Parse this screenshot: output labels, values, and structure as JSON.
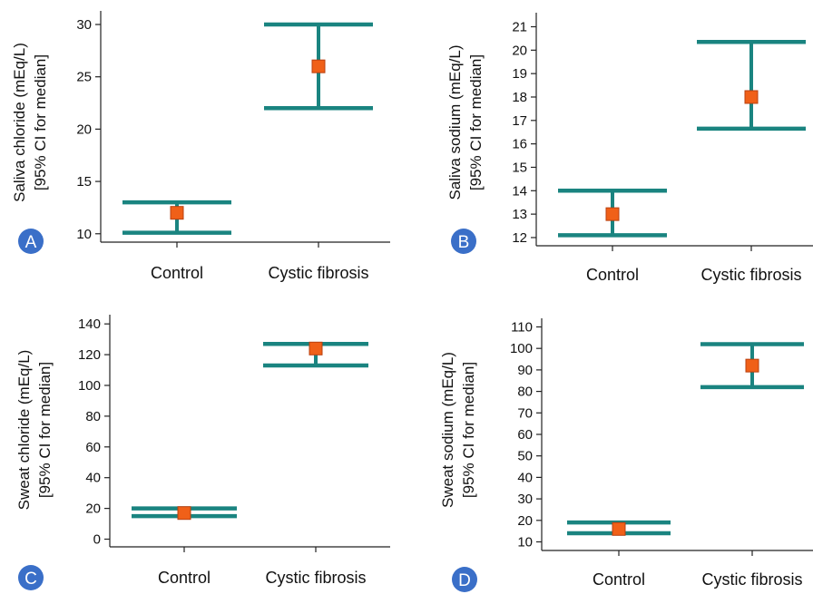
{
  "colors": {
    "ci_bar": "#1a8480",
    "median_marker": "#f06018",
    "median_marker_border": "#b84010",
    "axis": "#222222",
    "badge": "#3a6fc8"
  },
  "chart_data": [
    {
      "type": "errorbar",
      "panel": "A",
      "categories": [
        "Control",
        "Cystic fibrosis"
      ],
      "ylabel_line1": "Saliva chloride (mEq/L)",
      "ylabel_line2": "[95% CI for median]",
      "yticks": [
        10,
        15,
        20,
        25,
        30
      ],
      "ylim": [
        9.2,
        31.3
      ],
      "series": [
        {
          "category": "Control",
          "median": 12,
          "ci_low": 10.1,
          "ci_high": 13
        },
        {
          "category": "Cystic fibrosis",
          "median": 26,
          "ci_low": 22,
          "ci_high": 30
        }
      ]
    },
    {
      "type": "errorbar",
      "panel": "B",
      "categories": [
        "Control",
        "Cystic fibrosis"
      ],
      "ylabel_line1": "Saliva sodium (mEq/L)",
      "ylabel_line2": "[95% CI for median]",
      "yticks": [
        12,
        13,
        14,
        15,
        16,
        17,
        18,
        19,
        20,
        21
      ],
      "ylim": [
        11.65,
        21.6
      ],
      "series": [
        {
          "category": "Control",
          "median": 13,
          "ci_low": 12.1,
          "ci_high": 14
        },
        {
          "category": "Cystic fibrosis",
          "median": 18,
          "ci_low": 16.65,
          "ci_high": 20.35
        }
      ]
    },
    {
      "type": "errorbar",
      "panel": "C",
      "categories": [
        "Control",
        "Cystic fibrosis"
      ],
      "ylabel_line1": "Sweat chloride (mEq/L)",
      "ylabel_line2": "[95% CI for median]",
      "yticks": [
        0,
        20,
        40,
        60,
        80,
        100,
        120,
        140
      ],
      "ylim": [
        -5,
        146
      ],
      "series": [
        {
          "category": "Control",
          "median": 17,
          "ci_low": 15,
          "ci_high": 20
        },
        {
          "category": "Cystic fibrosis",
          "median": 124,
          "ci_low": 113,
          "ci_high": 127
        }
      ]
    },
    {
      "type": "errorbar",
      "panel": "D",
      "categories": [
        "Control",
        "Cystic fibrosis"
      ],
      "ylabel_line1": "Sweat sodium (mEq/L)",
      "ylabel_line2": "[95% CI for median]",
      "yticks": [
        10,
        20,
        30,
        40,
        50,
        60,
        70,
        80,
        90,
        100,
        110
      ],
      "ylim": [
        6,
        114
      ],
      "series": [
        {
          "category": "Control",
          "median": 16,
          "ci_low": 14,
          "ci_high": 19
        },
        {
          "category": "Cystic fibrosis",
          "median": 92,
          "ci_low": 82,
          "ci_high": 102
        }
      ]
    }
  ]
}
